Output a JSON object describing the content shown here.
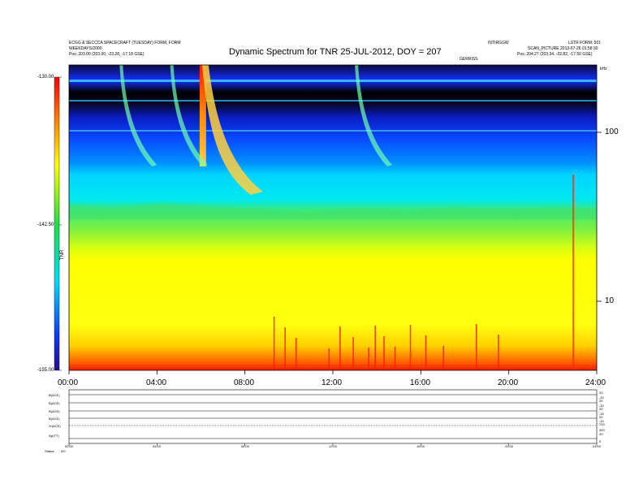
{
  "header": {
    "left_line1": "ECGG & SECCCA SPACECRAFT (TUESDAY)  FORM, FORM",
    "left_line2": "WEEKDAYS/2000",
    "left_line3": "Pos:   203.00 (203.00, -23.28, -17.18 GSE)",
    "right_line1": "INTIRGGW",
    "right_line1b": "LSTR FORM: 501",
    "right_line2": "SCAN_PICTURE  2013-07-26  01:58:30",
    "right_line3": "Pos:   204.27 (203.34, -22.82, -17.50 GSE)",
    "right_line3b": "kHz",
    "mid_small": "GERRISS"
  },
  "chart_data": {
    "type": "heatmap",
    "title": "Dynamic Spectrum for TNR 25-JUL-2012, DOY = 207",
    "x_ticks": [
      "00:00",
      "04:00",
      "08:00",
      "12:00",
      "16:00",
      "20:00",
      "24:00"
    ],
    "x_range_hours": [
      0,
      24
    ],
    "y_scale": "log",
    "y_unit": "kHz",
    "y_ticks": [
      100,
      10
    ],
    "y_range": [
      4,
      300
    ],
    "colorbar": {
      "ticks": [
        "-130.00",
        "-142.50",
        "-155.00"
      ],
      "range": [
        -155,
        -130
      ],
      "label": "TNR",
      "colors": [
        "#2a0a8a",
        "#0a3aff",
        "#00d8ff",
        "#20e040",
        "#ffff00",
        "#ff6a00",
        "#ff0000"
      ]
    },
    "features": [
      {
        "name": "type III burst",
        "start_hour": 6.05,
        "kind": "drifting"
      },
      {
        "name": "type III burst",
        "start_hour": 4.6,
        "kind": "drifting"
      },
      {
        "name": "type III burst",
        "start_hour": 13.0,
        "kind": "drifting"
      },
      {
        "name": "type III burst",
        "start_hour": 2.3,
        "kind": "drifting"
      },
      {
        "name": "spike",
        "start_hour": 22.9,
        "kind": "narrowband"
      }
    ]
  },
  "bottom_panel": {
    "row_labels": [
      "B(ACE)",
      "B(ACE)",
      "B(ACE)",
      "B(ACE)",
      "Vr(ACE)",
      "Np(TT)"
    ],
    "right_values": [
      [
        "20",
        "-20"
      ],
      [
        "20",
        "-20"
      ],
      [
        "20",
        "-20"
      ],
      [
        "20",
        "-20"
      ],
      [
        "700",
        "300"
      ],
      [
        "20",
        "0"
      ]
    ],
    "x_ticks": [
      "00:00",
      "04:00",
      "08:00",
      "12:00",
      "16:00",
      "20:00",
      "24:00"
    ],
    "status_label": "Status:",
    "status_value": "0/0"
  }
}
